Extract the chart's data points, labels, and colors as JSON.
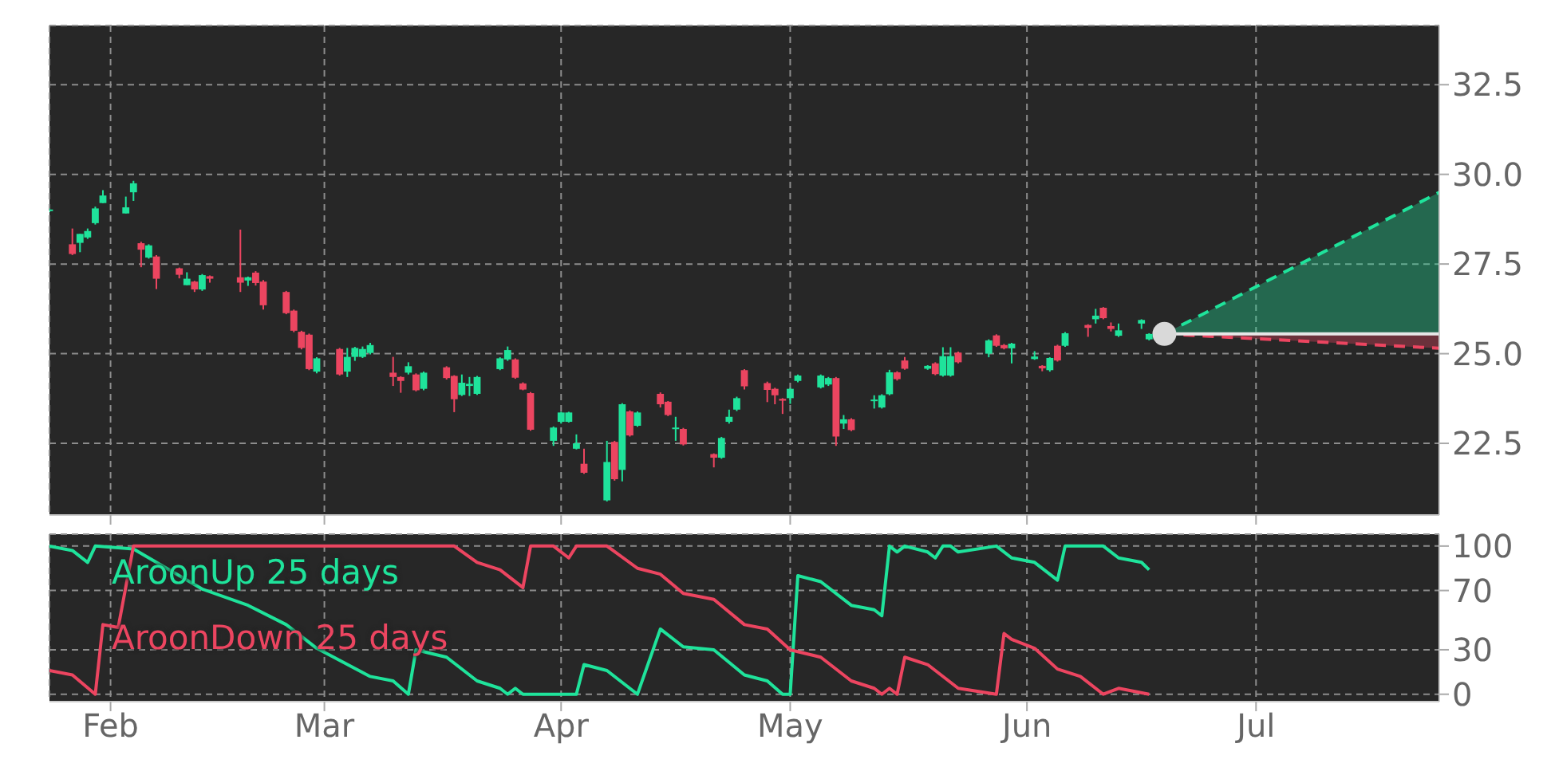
{
  "chart_data": [
    {
      "type": "candlestick",
      "tick_labels": "y",
      "grid": true,
      "xlim": [
        "--01-24",
        "--07-25"
      ],
      "ylim": [
        20.5,
        34.15
      ],
      "xticks": [
        {
          "value": "--02-01",
          "label": "Feb"
        },
        {
          "value": "--03-01",
          "label": "Mar"
        },
        {
          "value": "--04-01",
          "label": "Apr"
        },
        {
          "value": "--05-01",
          "label": "May"
        },
        {
          "value": "--06-01",
          "label": "Jun"
        },
        {
          "value": "--07-01",
          "label": "Jul"
        }
      ],
      "yticks": [
        22.5,
        {
          "value": 25,
          "label": "25.0"
        },
        27.5,
        {
          "value": 30,
          "label": "30.0"
        },
        32.5
      ],
      "x": [
        "--01-24",
        "--01-27",
        "--01-28",
        "--01-29",
        "--01-30",
        "--01-31",
        "--02-03",
        "--02-04",
        "--02-05",
        "--02-06",
        "--02-07",
        "--02-10",
        "--02-11",
        "--02-12",
        "--02-13",
        "--02-14",
        "--02-18",
        "--02-19",
        "--02-20",
        "--02-21",
        "--02-24",
        "--02-25",
        "--02-26",
        "--02-27",
        "--02-28",
        "--03-03",
        "--03-04",
        "--03-05",
        "--03-06",
        "--03-07",
        "--03-10",
        "--03-11",
        "--03-12",
        "--03-13",
        "--03-14",
        "--03-17",
        "--03-18",
        "--03-19",
        "--03-20",
        "--03-21",
        "--03-24",
        "--03-25",
        "--03-26",
        "--03-27",
        "--03-28",
        "--03-31",
        "--04-01",
        "--04-02",
        "--04-03",
        "--04-04",
        "--04-07",
        "--04-08",
        "--04-09",
        "--04-10",
        "--04-11",
        "--04-14",
        "--04-15",
        "--04-16",
        "--04-17",
        "--04-21",
        "--04-22",
        "--04-23",
        "--04-24",
        "--04-25",
        "--04-28",
        "--04-29",
        "--04-30",
        "--05-01",
        "--05-02",
        "--05-05",
        "--05-06",
        "--05-07",
        "--05-08",
        "--05-09",
        "--05-12",
        "--05-13",
        "--05-14",
        "--05-15",
        "--05-16",
        "--05-19",
        "--05-20",
        "--05-21",
        "--05-22",
        "--05-23",
        "--05-27",
        "--05-28",
        "--05-29",
        "--05-30",
        "--06-02",
        "--06-03",
        "--06-04",
        "--06-05",
        "--06-06",
        "--06-09",
        "--06-10",
        "--06-11",
        "--06-12",
        "--06-13",
        "--06-16",
        "--06-17"
      ],
      "ohlc": [
        [
          28.98,
          29.05,
          28.95,
          29.02
        ],
        [
          28.05,
          28.49,
          27.75,
          27.78
        ],
        [
          28.09,
          28.34,
          27.83,
          28.34
        ],
        [
          28.24,
          28.49,
          28.2,
          28.42
        ],
        [
          28.64,
          29.1,
          28.6,
          29.05
        ],
        [
          29.2,
          29.56,
          29.2,
          29.41
        ],
        [
          28.91,
          29.38,
          28.91,
          29.08
        ],
        [
          29.5,
          29.82,
          29.26,
          29.75
        ],
        [
          28.08,
          28.12,
          27.41,
          27.9
        ],
        [
          27.68,
          28.05,
          27.65,
          28.02
        ],
        [
          27.71,
          27.75,
          26.8,
          27.09
        ],
        [
          27.38,
          27.4,
          27.1,
          27.2
        ],
        [
          26.91,
          27.27,
          26.91,
          27.09
        ],
        [
          27.01,
          27.03,
          26.72,
          26.79
        ],
        [
          26.79,
          27.22,
          26.75,
          27.19
        ],
        [
          27.16,
          27.18,
          26.98,
          27.09
        ],
        [
          27.13,
          28.46,
          26.72,
          26.98
        ],
        [
          27.04,
          27.15,
          26.89,
          27.13
        ],
        [
          27.26,
          27.3,
          26.9,
          26.97
        ],
        [
          27.01,
          27.05,
          26.23,
          26.35
        ],
        [
          26.72,
          26.75,
          26.1,
          26.13
        ],
        [
          26.2,
          26.23,
          25.6,
          25.64
        ],
        [
          25.61,
          25.64,
          25.12,
          25.16
        ],
        [
          25.53,
          25.56,
          24.54,
          24.57
        ],
        [
          24.5,
          24.9,
          24.45,
          24.87
        ],
        [
          25.13,
          25.16,
          24.39,
          24.42
        ],
        [
          24.5,
          25.16,
          24.35,
          24.91
        ],
        [
          24.91,
          25.19,
          24.8,
          25.16
        ],
        [
          24.91,
          25.2,
          24.88,
          25.13
        ],
        [
          25.02,
          25.3,
          24.98,
          25.24
        ],
        [
          24.47,
          24.91,
          24.1,
          24.35
        ],
        [
          24.35,
          24.37,
          23.91,
          24.24
        ],
        [
          24.47,
          24.76,
          24.42,
          24.65
        ],
        [
          24.42,
          24.45,
          23.95,
          23.98
        ],
        [
          24.02,
          24.5,
          23.98,
          24.47
        ],
        [
          24.62,
          24.65,
          24.28,
          24.32
        ],
        [
          24.38,
          24.4,
          23.37,
          23.73
        ],
        [
          23.85,
          24.42,
          23.82,
          24.19
        ],
        [
          24.1,
          24.35,
          23.82,
          24.16
        ],
        [
          23.88,
          24.38,
          23.85,
          24.35
        ],
        [
          24.57,
          24.9,
          24.54,
          24.87
        ],
        [
          24.84,
          25.2,
          24.8,
          25.1
        ],
        [
          24.84,
          24.87,
          24.3,
          24.33
        ],
        [
          24.17,
          24.2,
          23.98,
          24.0
        ],
        [
          23.9,
          23.93,
          22.85,
          22.88
        ],
        [
          22.57,
          22.97,
          22.43,
          22.94
        ],
        [
          23.1,
          23.38,
          23.05,
          23.36
        ],
        [
          23.1,
          23.38,
          23.08,
          23.36
        ],
        [
          22.35,
          22.75,
          22.33,
          22.5
        ],
        [
          21.93,
          22.35,
          21.65,
          21.68
        ],
        [
          20.91,
          22.57,
          20.88,
          21.98
        ],
        [
          22.54,
          22.57,
          21.46,
          21.5
        ],
        [
          21.76,
          23.62,
          21.44,
          23.59
        ],
        [
          23.39,
          23.42,
          22.69,
          22.72
        ],
        [
          22.99,
          23.39,
          22.96,
          23.36
        ],
        [
          23.88,
          23.92,
          23.5,
          23.59
        ],
        [
          23.66,
          23.68,
          23.26,
          23.29
        ],
        [
          22.9,
          23.24,
          22.57,
          22.94
        ],
        [
          22.9,
          22.93,
          22.44,
          22.47
        ],
        [
          22.2,
          22.22,
          21.83,
          22.1
        ],
        [
          22.1,
          22.68,
          22.07,
          22.65
        ],
        [
          23.1,
          23.44,
          23.05,
          23.24
        ],
        [
          23.44,
          23.8,
          23.4,
          23.76
        ],
        [
          24.54,
          24.57,
          24.0,
          24.09
        ],
        [
          24.18,
          24.22,
          23.65,
          23.99
        ],
        [
          24.02,
          24.05,
          23.59,
          23.84
        ],
        [
          23.74,
          23.76,
          23.32,
          23.69
        ],
        [
          23.76,
          24.05,
          23.6,
          24.02
        ],
        [
          24.24,
          24.42,
          24.2,
          24.39
        ],
        [
          24.06,
          24.42,
          24.03,
          24.39
        ],
        [
          24.14,
          24.35,
          24.1,
          24.32
        ],
        [
          24.32,
          24.35,
          22.43,
          22.69
        ],
        [
          23.05,
          23.29,
          22.9,
          23.17
        ],
        [
          23.17,
          23.2,
          22.84,
          22.87
        ],
        [
          23.69,
          23.84,
          23.47,
          23.72
        ],
        [
          23.5,
          23.87,
          23.47,
          23.84
        ],
        [
          23.87,
          24.55,
          23.84,
          24.48
        ],
        [
          24.48,
          24.51,
          24.25,
          24.29
        ],
        [
          24.81,
          24.91,
          24.55,
          24.58
        ],
        [
          24.58,
          24.68,
          24.55,
          24.66
        ],
        [
          24.73,
          24.76,
          24.4,
          24.43
        ],
        [
          24.39,
          25.18,
          24.36,
          24.93
        ],
        [
          24.39,
          25.18,
          24.36,
          24.93
        ],
        [
          25.03,
          25.06,
          24.73,
          24.76
        ],
        [
          25.0,
          25.4,
          24.9,
          25.37
        ],
        [
          25.51,
          25.54,
          25.19,
          25.22
        ],
        [
          25.24,
          25.27,
          25.12,
          25.15
        ],
        [
          25.15,
          25.3,
          24.73,
          25.28
        ],
        [
          24.85,
          25.07,
          24.83,
          24.92
        ],
        [
          24.66,
          24.68,
          24.51,
          24.59
        ],
        [
          24.54,
          24.9,
          24.5,
          24.88
        ],
        [
          25.22,
          25.25,
          24.78,
          24.81
        ],
        [
          25.22,
          25.6,
          25.19,
          25.57
        ],
        [
          25.8,
          25.82,
          25.47,
          25.72
        ],
        [
          25.96,
          26.25,
          25.84,
          26.06
        ],
        [
          26.28,
          26.3,
          25.96,
          25.99
        ],
        [
          25.77,
          25.87,
          25.62,
          25.69
        ],
        [
          25.5,
          25.84,
          25.47,
          25.65
        ],
        [
          25.84,
          25.96,
          25.69,
          25.94
        ],
        [
          25.4,
          25.57,
          25.37,
          25.55
        ]
      ],
      "colors": [
        "#1fe39b",
        "#ec4560",
        "#1fe39b",
        "#1fe39b",
        "#1fe39b",
        "#1fe39b",
        "#1fe39b",
        "#1fe39b",
        "#ec4560",
        "#1fe39b",
        "#ec4560",
        "#ec4560",
        "#1fe39b",
        "#ec4560",
        "#1fe39b",
        "#ec4560",
        "#ec4560",
        "#1fe39b",
        "#ec4560",
        "#ec4560",
        "#ec4560",
        "#ec4560",
        "#ec4560",
        "#ec4560",
        "#1fe39b",
        "#ec4560",
        "#1fe39b",
        "#1fe39b",
        "#1fe39b",
        "#1fe39b",
        "#ec4560",
        "#ec4560",
        "#1fe39b",
        "#ec4560",
        "#1fe39b",
        "#ec4560",
        "#ec4560",
        "#1fe39b",
        "#1fe39b",
        "#1fe39b",
        "#1fe39b",
        "#1fe39b",
        "#ec4560",
        "#ec4560",
        "#ec4560",
        "#1fe39b",
        "#1fe39b",
        "#1fe39b",
        "#1fe39b",
        "#ec4560",
        "#1fe39b",
        "#ec4560",
        "#1fe39b",
        "#ec4560",
        "#1fe39b",
        "#ec4560",
        "#ec4560",
        "#1fe39b",
        "#ec4560",
        "#ec4560",
        "#1fe39b",
        "#1fe39b",
        "#1fe39b",
        "#ec4560",
        "#ec4560",
        "#ec4560",
        "#ec4560",
        "#1fe39b",
        "#1fe39b",
        "#1fe39b",
        "#1fe39b",
        "#ec4560",
        "#1fe39b",
        "#ec4560",
        "#1fe39b",
        "#1fe39b",
        "#1fe39b",
        "#ec4560",
        "#ec4560",
        "#1fe39b",
        "#ec4560",
        "#1fe39b",
        "#1fe39b",
        "#ec4560",
        "#1fe39b",
        "#ec4560",
        "#ec4560",
        "#1fe39b",
        "#1fe39b",
        "#ec4560",
        "#1fe39b",
        "#ec4560",
        "#1fe39b",
        "#ec4560",
        "#1fe39b",
        "#ec4560",
        "#ec4560",
        "#1fe39b",
        "#1fe39b",
        "#1fe39b"
      ],
      "series": [
        {
          "type": "line",
          "color": "#1fe39b",
          "line_style": "dashed",
          "x": [
            "--06-19",
            "--07-25"
          ],
          "values": [
            25.55,
            29.5
          ],
          "lower": [
            25.55,
            25.55
          ],
          "upper": [
            25.55,
            29.5
          ]
        },
        {
          "type": "line",
          "color": "#ec4560",
          "line_style": "dashed",
          "x": [
            "--06-19",
            "--07-25"
          ],
          "values": [
            25.55,
            25.15
          ],
          "lower": [
            25.55,
            25.15
          ],
          "upper": [
            25.55,
            25.55
          ]
        },
        {
          "type": "line",
          "color": "#e6e6e6",
          "line_style": "solid",
          "x": [
            "--06-19",
            "--07-25"
          ],
          "values": [
            25.55,
            25.55
          ]
        },
        {
          "type": "scatter",
          "color": "#d9d9d9",
          "x": [
            "--06-19"
          ],
          "values": [
            25.55
          ]
        }
      ]
    },
    {
      "type": "line",
      "grid": true,
      "legend": "top left",
      "xlim": [
        "--01-24",
        "--07-25"
      ],
      "ylim": [
        -5,
        108
      ],
      "xticks": [
        {
          "value": "--02-01",
          "label": "Feb"
        },
        {
          "value": "--03-01",
          "label": "Mar"
        },
        {
          "value": "--04-01",
          "label": "Apr"
        },
        {
          "value": "--05-01",
          "label": "May"
        },
        {
          "value": "--06-01",
          "label": "Jun"
        },
        {
          "value": "--07-01",
          "label": "Jul"
        }
      ],
      "yticks": [
        0,
        30,
        70,
        100
      ],
      "series": [
        {
          "name": "AroonUp 25 days",
          "color": "#1fe39b",
          "x": [
            "--01-24",
            "--01-27",
            "--01-29",
            "--01-30",
            "--02-04",
            "--02-13",
            "--02-19",
            "--02-24",
            "--02-28",
            "--03-07",
            "--03-10",
            "--03-12",
            "--03-13",
            "--03-17",
            "--03-21",
            "--03-24",
            "--03-25",
            "--03-26",
            "--03-27",
            "--04-03",
            "--04-04",
            "--04-07",
            "--04-11",
            "--04-14",
            "--04-17",
            "--04-21",
            "--04-25",
            "--04-28",
            "--04-30",
            "--05-01",
            "--05-02",
            "--05-05",
            "--05-09",
            "--05-12",
            "--05-13",
            "--05-14",
            "--05-15",
            "--05-16",
            "--05-19",
            "--05-20",
            "--05-21",
            "--05-22",
            "--05-23",
            "--05-28",
            "--05-30",
            "--06-02",
            "--06-05",
            "--06-06",
            "--06-11",
            "--06-13",
            "--06-16",
            "--06-17"
          ],
          "values": [
            100,
            97,
            89,
            100,
            98,
            71,
            60,
            47,
            31,
            12,
            9,
            0,
            30,
            25,
            9,
            4,
            0,
            4,
            0,
            0,
            20,
            16,
            0,
            44,
            32,
            30,
            13,
            9,
            0,
            0,
            80,
            76,
            60,
            57,
            53,
            100,
            96,
            100,
            96,
            92,
            100,
            100,
            96,
            100,
            92,
            89,
            77,
            100,
            100,
            92,
            89,
            84
          ]
        },
        {
          "name": "AroonDown 25 days",
          "color": "#ec4560",
          "x": [
            "--01-24",
            "--01-27",
            "--01-30",
            "--01-31",
            "--02-02",
            "--02-04",
            "--02-12",
            "--03-10",
            "--03-18",
            "--03-21",
            "--03-24",
            "--03-27",
            "--03-28",
            "--03-31",
            "--04-02",
            "--04-03",
            "--04-07",
            "--04-11",
            "--04-14",
            "--04-17",
            "--04-21",
            "--04-25",
            "--04-28",
            "--05-01",
            "--05-05",
            "--05-09",
            "--05-12",
            "--05-13",
            "--05-14",
            "--05-15",
            "--05-16",
            "--05-19",
            "--05-23",
            "--05-28",
            "--05-29",
            "--05-30",
            "--06-02",
            "--06-05",
            "--06-08",
            "--06-11",
            "--06-13",
            "--06-17"
          ],
          "values": [
            16,
            13,
            0,
            47,
            45,
            100,
            100,
            100,
            100,
            89,
            84,
            72,
            100,
            100,
            92,
            100,
            100,
            85,
            81,
            68,
            64,
            47,
            44,
            30,
            25,
            9,
            4,
            0,
            4,
            0,
            25,
            20,
            4,
            0,
            41,
            37,
            31,
            17,
            12,
            0,
            4,
            0
          ]
        }
      ]
    }
  ]
}
